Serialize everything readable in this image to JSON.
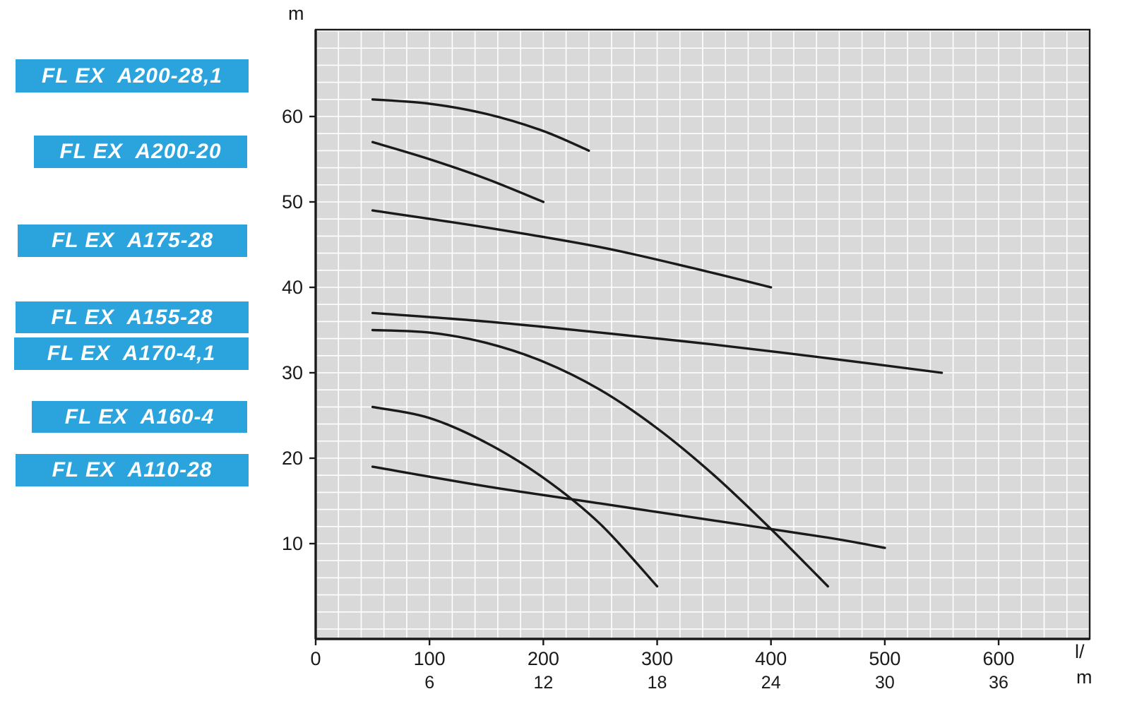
{
  "legend": {
    "items": [
      {
        "text": "FL EX  A200-28,1"
      },
      {
        "text": "FL EX  A200-20"
      },
      {
        "text": "FL EX  A175-28"
      },
      {
        "text": "FL EX  A155-28"
      },
      {
        "text": "FL EX  A170-4,1"
      },
      {
        "text": "FL EX  A160-4"
      },
      {
        "text": "FL EX  A110-28"
      }
    ]
  },
  "axes": {
    "y_unit": "m",
    "x_unit_top": "l/",
    "x_unit_bottom": "m"
  },
  "colors": {
    "label_bg": "#2ba4de",
    "label_text": "#ffffff",
    "plot_bg": "#d9d9d9",
    "grid": "#ffffff",
    "curve": "#1a1a1a",
    "axis": "#1a1a1a"
  },
  "chart_data": {
    "type": "line",
    "title": "",
    "xlabel": "l/m",
    "ylabel": "m",
    "x_ticks": [
      0,
      100,
      200,
      300,
      400,
      500,
      600
    ],
    "x_ticks_secondary": {
      "values": [
        6,
        12,
        18,
        24,
        30,
        36
      ],
      "align_with": [
        100,
        200,
        300,
        400,
        500,
        600
      ]
    },
    "y_ticks": [
      10,
      20,
      30,
      40,
      50,
      60
    ],
    "xlim": [
      0,
      680
    ],
    "ylim": [
      0,
      70
    ],
    "grid_step": {
      "x": 20,
      "y": 2
    },
    "grid": true,
    "legend_position": "left",
    "series": [
      {
        "name": "FL EX A200-28,1",
        "points": [
          [
            50,
            62
          ],
          [
            100,
            61.5
          ],
          [
            150,
            60.3
          ],
          [
            200,
            58.3
          ],
          [
            240,
            56
          ]
        ]
      },
      {
        "name": "FL EX A200-20",
        "points": [
          [
            50,
            57
          ],
          [
            100,
            55
          ],
          [
            150,
            52.7
          ],
          [
            200,
            50
          ]
        ]
      },
      {
        "name": "FL EX A175-28",
        "points": [
          [
            50,
            49
          ],
          [
            150,
            47
          ],
          [
            250,
            44.7
          ],
          [
            330,
            42.3
          ],
          [
            400,
            40
          ]
        ]
      },
      {
        "name": "FL EX A155-28",
        "points": [
          [
            50,
            37
          ],
          [
            150,
            36
          ],
          [
            250,
            34.7
          ],
          [
            350,
            33.3
          ],
          [
            450,
            31.7
          ],
          [
            550,
            30
          ]
        ]
      },
      {
        "name": "FL EX A170-4,1",
        "points": [
          [
            50,
            35
          ],
          [
            100,
            34.7
          ],
          [
            150,
            33.5
          ],
          [
            200,
            31.3
          ],
          [
            250,
            28
          ],
          [
            300,
            23.5
          ],
          [
            350,
            18
          ],
          [
            400,
            11.7
          ],
          [
            450,
            5
          ]
        ]
      },
      {
        "name": "FL EX A160-4",
        "points": [
          [
            50,
            26
          ],
          [
            100,
            24.7
          ],
          [
            150,
            21.8
          ],
          [
            200,
            17.7
          ],
          [
            250,
            12.3
          ],
          [
            300,
            5
          ]
        ]
      },
      {
        "name": "FL EX A110-28",
        "points": [
          [
            50,
            19
          ],
          [
            150,
            16.7
          ],
          [
            250,
            14.7
          ],
          [
            350,
            12.7
          ],
          [
            450,
            10.7
          ],
          [
            500,
            9.5
          ]
        ]
      }
    ]
  }
}
